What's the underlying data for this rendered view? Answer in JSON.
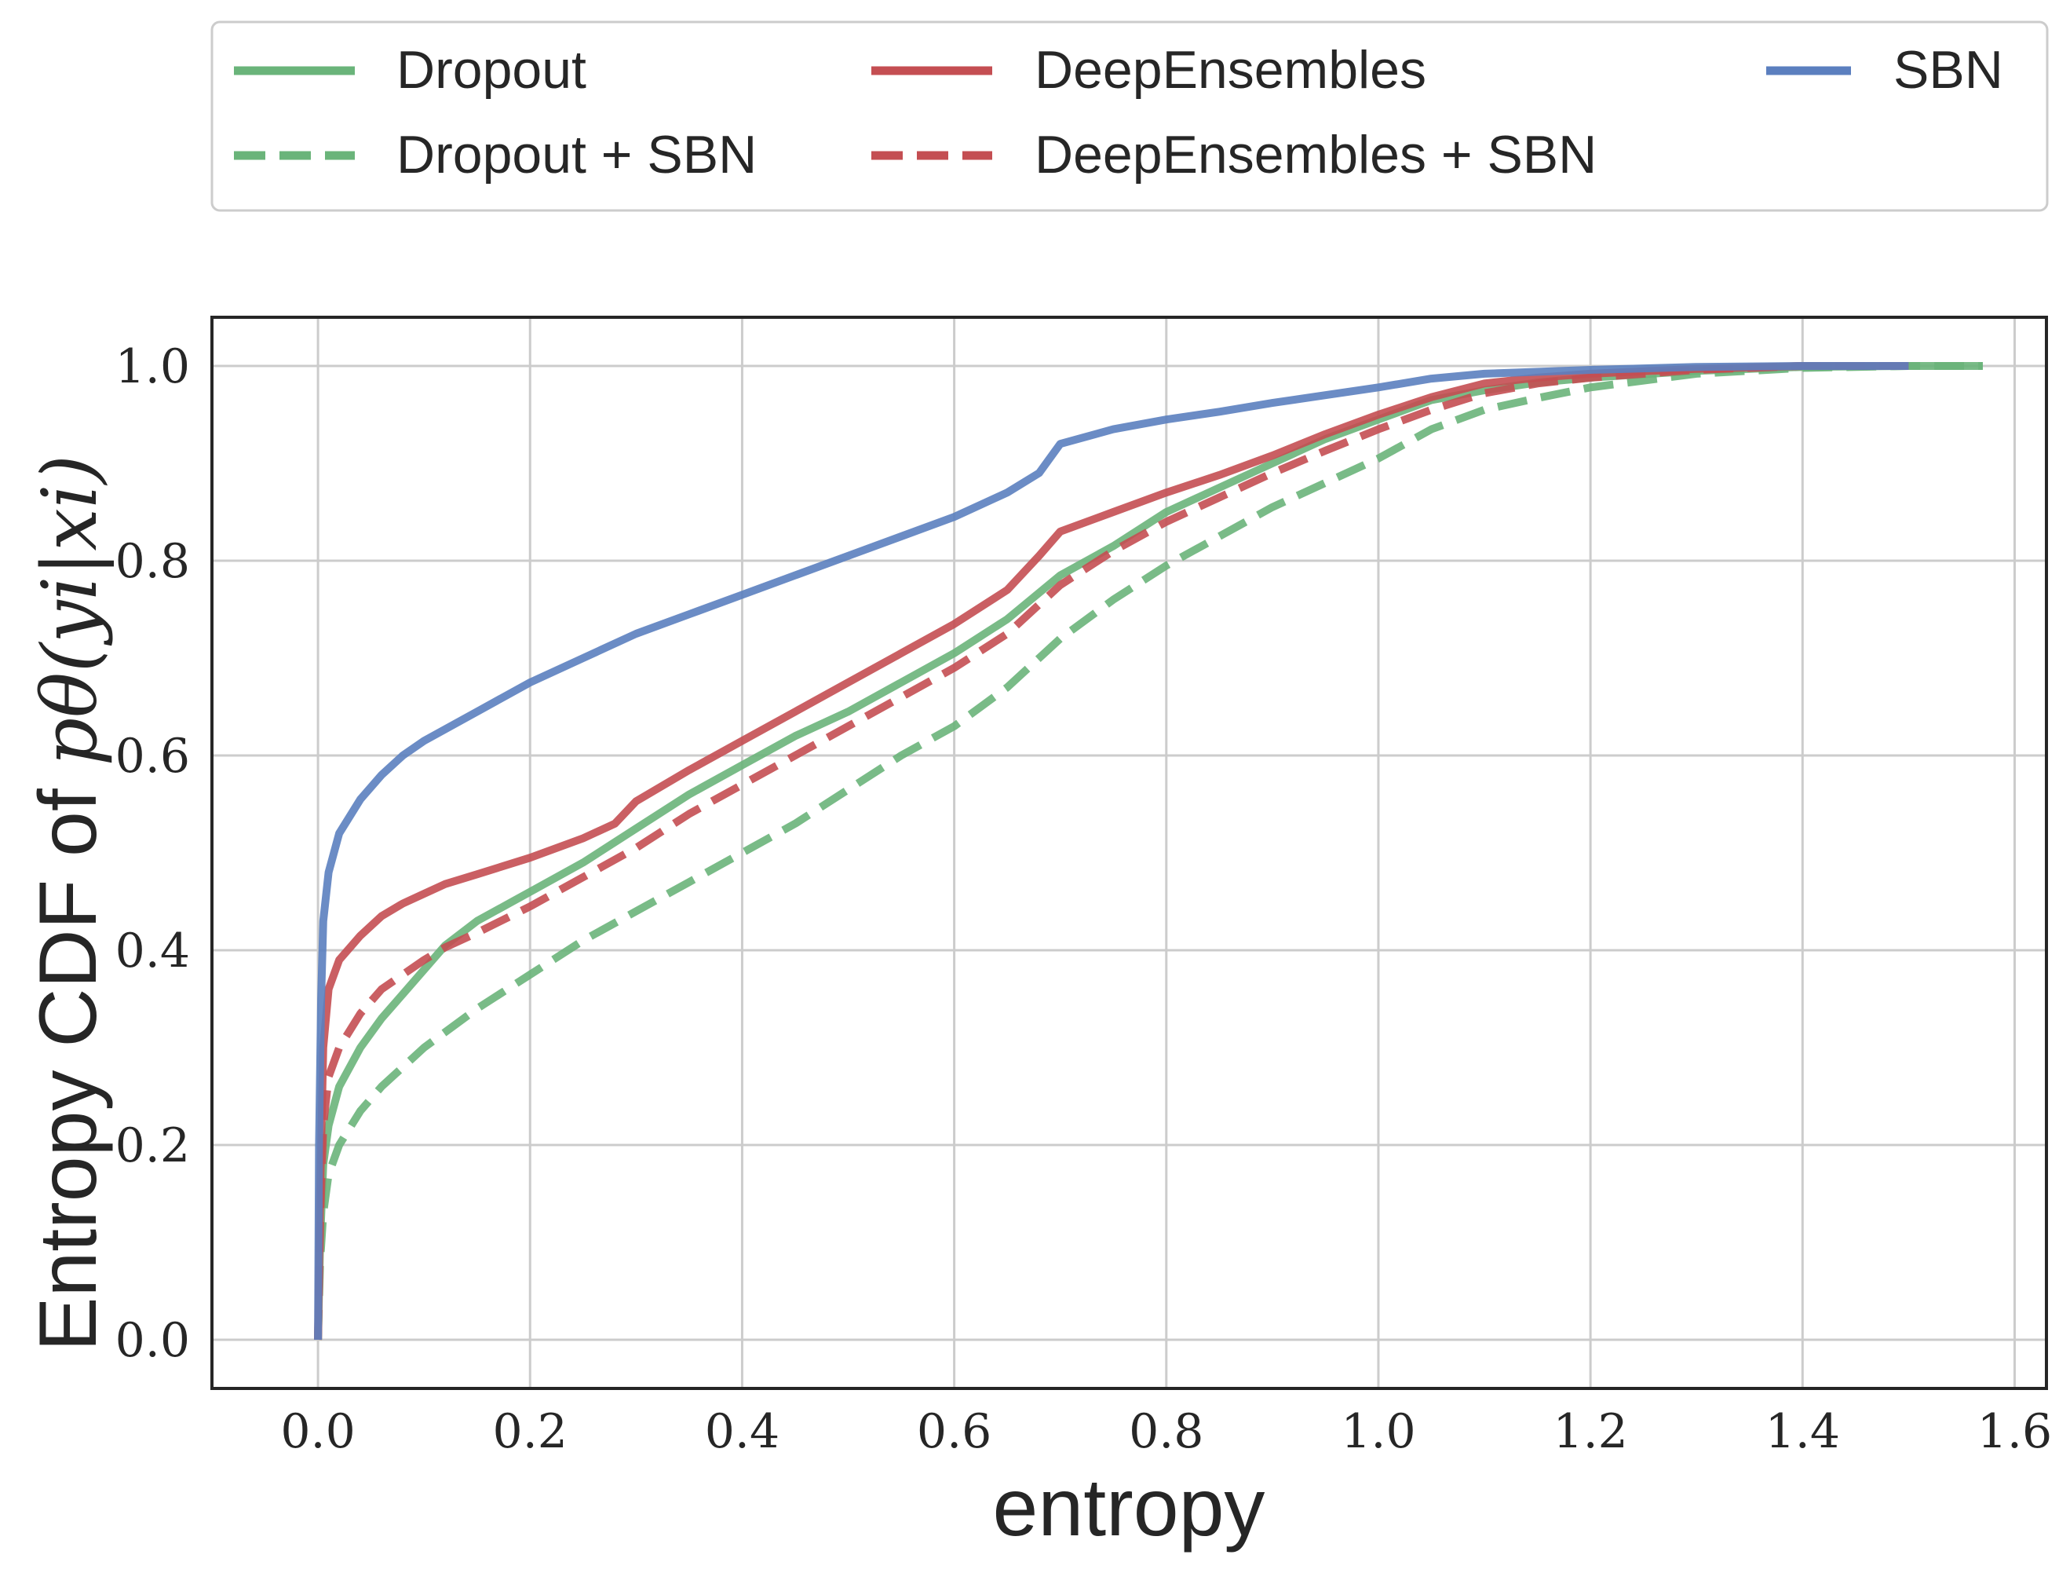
{
  "chart_data": {
    "type": "line",
    "xlabel": "entropy",
    "ylabel": "Entropy CDF of ",
    "ylabel_math": "pθ(yi|xi)",
    "xlim": [
      -0.1,
      1.63
    ],
    "ylim": [
      -0.05,
      1.05
    ],
    "xticks": [
      0.0,
      0.2,
      0.4,
      0.6,
      0.8,
      1.0,
      1.2,
      1.4,
      1.6
    ],
    "xtick_labels": [
      "0.0",
      "0.2",
      "0.4",
      "0.6",
      "0.8",
      "1.0",
      "1.2",
      "1.4",
      "1.6"
    ],
    "yticks": [
      0.0,
      0.2,
      0.4,
      0.6,
      0.8,
      1.0
    ],
    "ytick_labels": [
      "0.0",
      "0.2",
      "0.4",
      "0.6",
      "0.8",
      "1.0"
    ],
    "grid": true,
    "legend_position": "top",
    "series": [
      {
        "name": "Dropout",
        "color": "#6ab47a",
        "style": "solid",
        "points": [
          [
            0.0,
            0.0
          ],
          [
            0.002,
            0.1
          ],
          [
            0.005,
            0.18
          ],
          [
            0.01,
            0.22
          ],
          [
            0.02,
            0.26
          ],
          [
            0.04,
            0.3
          ],
          [
            0.06,
            0.33
          ],
          [
            0.08,
            0.355
          ],
          [
            0.1,
            0.38
          ],
          [
            0.12,
            0.405
          ],
          [
            0.15,
            0.43
          ],
          [
            0.2,
            0.46
          ],
          [
            0.25,
            0.49
          ],
          [
            0.3,
            0.525
          ],
          [
            0.35,
            0.56
          ],
          [
            0.4,
            0.59
          ],
          [
            0.45,
            0.62
          ],
          [
            0.5,
            0.645
          ],
          [
            0.55,
            0.675
          ],
          [
            0.6,
            0.705
          ],
          [
            0.65,
            0.74
          ],
          [
            0.7,
            0.785
          ],
          [
            0.75,
            0.815
          ],
          [
            0.8,
            0.85
          ],
          [
            0.85,
            0.875
          ],
          [
            0.9,
            0.9
          ],
          [
            0.95,
            0.925
          ],
          [
            1.0,
            0.945
          ],
          [
            1.05,
            0.965
          ],
          [
            1.1,
            0.975
          ],
          [
            1.15,
            0.983
          ],
          [
            1.2,
            0.988
          ],
          [
            1.3,
            0.995
          ],
          [
            1.4,
            0.999
          ],
          [
            1.5,
            1.0
          ],
          [
            1.57,
            1.0
          ]
        ]
      },
      {
        "name": "Dropout + SBN",
        "color": "#6ab47a",
        "style": "dashed",
        "points": [
          [
            0.0,
            0.0
          ],
          [
            0.002,
            0.08
          ],
          [
            0.005,
            0.13
          ],
          [
            0.01,
            0.17
          ],
          [
            0.02,
            0.2
          ],
          [
            0.04,
            0.235
          ],
          [
            0.06,
            0.26
          ],
          [
            0.08,
            0.28
          ],
          [
            0.1,
            0.3
          ],
          [
            0.15,
            0.34
          ],
          [
            0.2,
            0.375
          ],
          [
            0.25,
            0.41
          ],
          [
            0.3,
            0.44
          ],
          [
            0.35,
            0.47
          ],
          [
            0.4,
            0.5
          ],
          [
            0.45,
            0.53
          ],
          [
            0.5,
            0.565
          ],
          [
            0.55,
            0.6
          ],
          [
            0.6,
            0.63
          ],
          [
            0.65,
            0.67
          ],
          [
            0.7,
            0.72
          ],
          [
            0.75,
            0.76
          ],
          [
            0.8,
            0.795
          ],
          [
            0.85,
            0.825
          ],
          [
            0.9,
            0.855
          ],
          [
            0.95,
            0.88
          ],
          [
            1.0,
            0.905
          ],
          [
            1.05,
            0.935
          ],
          [
            1.1,
            0.955
          ],
          [
            1.15,
            0.967
          ],
          [
            1.2,
            0.978
          ],
          [
            1.3,
            0.992
          ],
          [
            1.4,
            0.998
          ],
          [
            1.5,
            1.0
          ],
          [
            1.57,
            1.0
          ]
        ]
      },
      {
        "name": "DeepEnsembles",
        "color": "#c44e52",
        "style": "solid",
        "points": [
          [
            0.0,
            0.0
          ],
          [
            0.002,
            0.15
          ],
          [
            0.005,
            0.3
          ],
          [
            0.01,
            0.36
          ],
          [
            0.02,
            0.39
          ],
          [
            0.04,
            0.415
          ],
          [
            0.06,
            0.435
          ],
          [
            0.08,
            0.448
          ],
          [
            0.1,
            0.458
          ],
          [
            0.12,
            0.468
          ],
          [
            0.15,
            0.478
          ],
          [
            0.2,
            0.495
          ],
          [
            0.25,
            0.515
          ],
          [
            0.28,
            0.53
          ],
          [
            0.3,
            0.553
          ],
          [
            0.35,
            0.585
          ],
          [
            0.4,
            0.615
          ],
          [
            0.45,
            0.645
          ],
          [
            0.5,
            0.675
          ],
          [
            0.55,
            0.705
          ],
          [
            0.6,
            0.735
          ],
          [
            0.65,
            0.77
          ],
          [
            0.68,
            0.805
          ],
          [
            0.7,
            0.83
          ],
          [
            0.75,
            0.85
          ],
          [
            0.8,
            0.87
          ],
          [
            0.85,
            0.888
          ],
          [
            0.9,
            0.908
          ],
          [
            0.95,
            0.93
          ],
          [
            1.0,
            0.95
          ],
          [
            1.05,
            0.968
          ],
          [
            1.1,
            0.982
          ],
          [
            1.15,
            0.988
          ],
          [
            1.2,
            0.992
          ],
          [
            1.3,
            0.997
          ],
          [
            1.4,
            1.0
          ],
          [
            1.5,
            1.0
          ]
        ]
      },
      {
        "name": "DeepEnsembles + SBN",
        "color": "#c44e52",
        "style": "dashed",
        "points": [
          [
            0.0,
            0.0
          ],
          [
            0.002,
            0.12
          ],
          [
            0.005,
            0.22
          ],
          [
            0.01,
            0.27
          ],
          [
            0.02,
            0.3
          ],
          [
            0.04,
            0.335
          ],
          [
            0.06,
            0.36
          ],
          [
            0.08,
            0.375
          ],
          [
            0.1,
            0.39
          ],
          [
            0.12,
            0.403
          ],
          [
            0.15,
            0.418
          ],
          [
            0.2,
            0.445
          ],
          [
            0.25,
            0.475
          ],
          [
            0.3,
            0.505
          ],
          [
            0.35,
            0.54
          ],
          [
            0.4,
            0.57
          ],
          [
            0.45,
            0.6
          ],
          [
            0.5,
            0.63
          ],
          [
            0.55,
            0.66
          ],
          [
            0.6,
            0.69
          ],
          [
            0.65,
            0.725
          ],
          [
            0.7,
            0.775
          ],
          [
            0.75,
            0.81
          ],
          [
            0.8,
            0.84
          ],
          [
            0.85,
            0.865
          ],
          [
            0.9,
            0.89
          ],
          [
            0.95,
            0.913
          ],
          [
            1.0,
            0.935
          ],
          [
            1.05,
            0.955
          ],
          [
            1.1,
            0.972
          ],
          [
            1.15,
            0.982
          ],
          [
            1.2,
            0.988
          ],
          [
            1.3,
            0.996
          ],
          [
            1.4,
            1.0
          ],
          [
            1.5,
            1.0
          ]
        ]
      },
      {
        "name": "SBN",
        "color": "#5b7fbf",
        "style": "solid",
        "points": [
          [
            0.0,
            0.0
          ],
          [
            0.001,
            0.2
          ],
          [
            0.003,
            0.35
          ],
          [
            0.005,
            0.43
          ],
          [
            0.01,
            0.48
          ],
          [
            0.02,
            0.52
          ],
          [
            0.04,
            0.555
          ],
          [
            0.06,
            0.58
          ],
          [
            0.08,
            0.6
          ],
          [
            0.1,
            0.615
          ],
          [
            0.15,
            0.645
          ],
          [
            0.2,
            0.675
          ],
          [
            0.25,
            0.7
          ],
          [
            0.3,
            0.725
          ],
          [
            0.35,
            0.745
          ],
          [
            0.4,
            0.765
          ],
          [
            0.45,
            0.785
          ],
          [
            0.5,
            0.805
          ],
          [
            0.55,
            0.825
          ],
          [
            0.6,
            0.845
          ],
          [
            0.65,
            0.87
          ],
          [
            0.68,
            0.89
          ],
          [
            0.7,
            0.92
          ],
          [
            0.75,
            0.935
          ],
          [
            0.8,
            0.945
          ],
          [
            0.85,
            0.953
          ],
          [
            0.9,
            0.962
          ],
          [
            0.95,
            0.97
          ],
          [
            1.0,
            0.978
          ],
          [
            1.05,
            0.987
          ],
          [
            1.1,
            0.992
          ],
          [
            1.2,
            0.996
          ],
          [
            1.3,
            0.999
          ],
          [
            1.4,
            1.0
          ],
          [
            1.5,
            1.0
          ]
        ]
      }
    ]
  }
}
